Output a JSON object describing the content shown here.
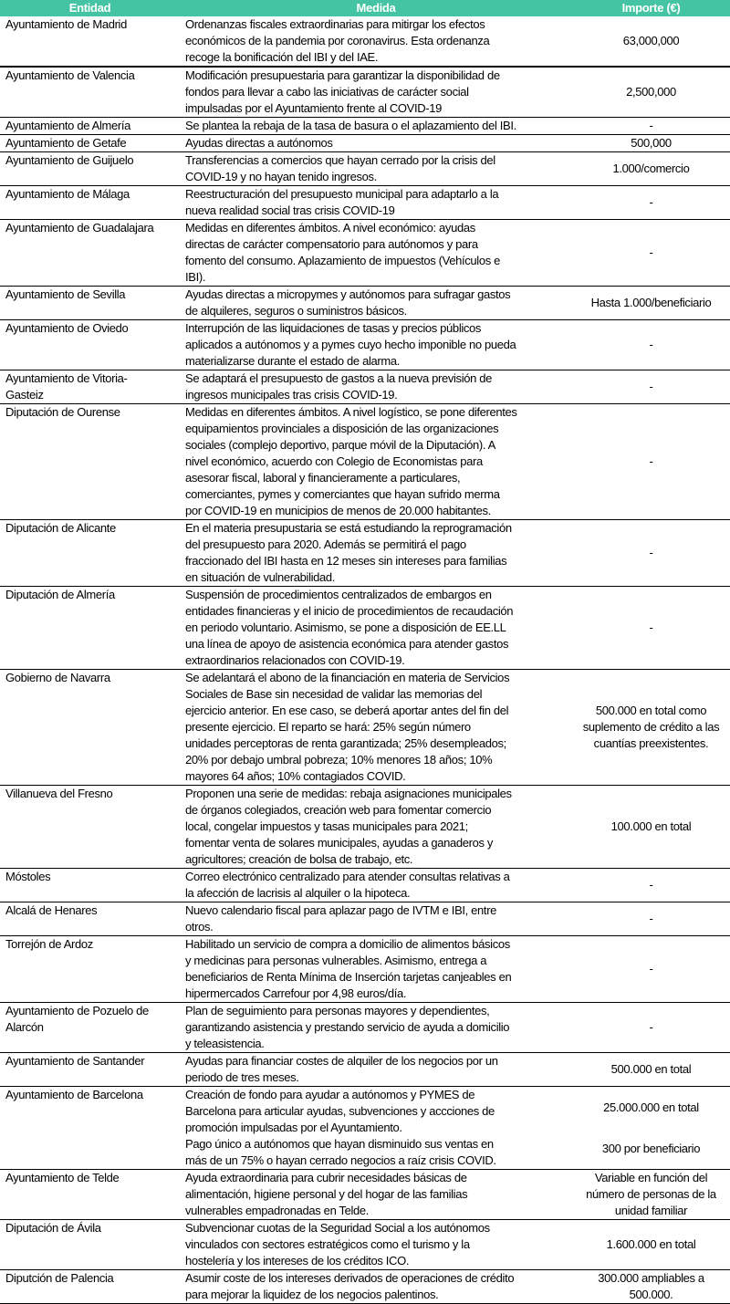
{
  "headers": {
    "entidad": "Entidad",
    "medida": "Medida",
    "importe": "Importe (€)"
  },
  "header_color": "#45C4A4",
  "rows": [
    {
      "entidad": "Ayuntamiento de Madrid",
      "medida": "Ordenanzas fiscales extraordinarias para mitirgar los efectos\neconómicos de la pandemia por coronavirus. Esta ordenanza\nrecoge la bonificación del IBI y del IAE.",
      "importe": [
        "63,000,000"
      ]
    },
    {
      "entidad": "Ayuntamiento de Valencia",
      "medida": "Modificación presupuestaria para garantizar la disponibilidad de\nfondos para llevar a cabo las iniciativas de carácter social\nimpulsadas por el Ayuntamiento frente al COVID-19",
      "importe": [
        "2,500,000"
      ]
    },
    {
      "entidad": "Ayuntamiento de Almería",
      "medida": "Se plantea la rebaja de la tasa de basura o el aplazamiento del IBI.",
      "importe": [
        "-"
      ]
    },
    {
      "entidad": "Ayuntamiento de Getafe",
      "medida": "Ayudas directas a autónomos",
      "importe": [
        "500,000"
      ]
    },
    {
      "entidad": "Ayuntamiento de Guijuelo",
      "medida": "Transferencias a comercios que hayan cerrado por la crisis del\nCOVID-19 y no hayan tenido ingresos.",
      "importe": [
        "1.000/comercio"
      ]
    },
    {
      "entidad": "Ayuntamiento de Málaga",
      "medida": "Reestructuración del presupuesto municipal para adaptarlo a la\nnueva realidad social tras crisis COVID-19",
      "importe": [
        "-"
      ]
    },
    {
      "entidad": "Ayuntamiento de Guadalajara",
      "medida": "Medidas en diferentes ámbitos. A nivel económico: ayudas\ndirectas de carácter compensatorio para autónomos y para\nfomento del consumo. Aplazamiento de impuestos (Vehículos e\nIBI).",
      "importe": [
        "-"
      ]
    },
    {
      "entidad": "Ayuntamiento de Sevilla",
      "medida": "Ayudas directas a micropymes y autónomos para sufragar gastos\nde alquileres, seguros o suministros básicos.",
      "importe": [
        "Hasta 1.000/beneficiario"
      ]
    },
    {
      "entidad": "Ayuntamiento de Oviedo",
      "medida": "Interrupción de las liquidaciones de tasas y precios públicos\naplicados a autónomos y a pymes cuyo hecho imponible no pueda\nmaterializarse durante el estado de alarma.",
      "importe": [
        "-"
      ]
    },
    {
      "entidad": "Ayuntamiento de Vitoria-\nGasteiz",
      "medida": "Se adaptará el presupuesto de gastos a la nueva previsión de\ningresos municipales tras crisis COVID-19.",
      "importe": [
        "-"
      ]
    },
    {
      "entidad": "Diputación de Ourense",
      "medida": "Medidas en diferentes ámbitos. A nivel logístico, se pone diferentes\nequipamientos provinciales a disposición de las organizaciones\nsociales (complejo deportivo, parque móvil de la Diputación). A\nnivel económico, acuerdo con Colegio de Economistas para\nasesorar fiscal, laboral y financieramente a particulares,\ncomerciantes, pymes y comerciantes que hayan sufrido merma\npor COVID-19 en municipios de menos de 20.000 habitantes.",
      "importe": [
        "-"
      ]
    },
    {
      "entidad": "Diputación de Alicante",
      "medida": "En el materia presupustaria se está estudiando la reprogramación\ndel presupuesto para 2020. Además se permitirá el pago\nfraccionado del IBI hasta en 12 meses sin intereses para familias\nen situación de vulnerabilidad.",
      "importe": [
        "-"
      ]
    },
    {
      "entidad": "Diputación de Almería",
      "medida": "Suspensión de procedimientos centralizados de embargos en\nentidades financieras y el inicio de procedimientos de recaudación\nen periodo voluntario. Asimismo, se pone a disposición de EE.LL\nuna línea de apoyo de asistencia económica para atender gastos\nextraordinarios relacionados con COVID-19.",
      "importe": [
        "-"
      ]
    },
    {
      "entidad": "Gobierno de Navarra",
      "medida": "Se adelantará el abono de la financiación en materia de Servicios\nSociales de Base sin necesidad de validar las memorias del\nejercicio anterior. En ese caso, se deberá aportar antes del fin del\npresente ejercicio. El reparto  se hará: 25% según número\nunidades perceptoras de renta garantizada; 25% desempleados;\n20% por debajo umbral pobreza; 10% menores 18 años; 10%\nmayores 64 años; 10% contagiados COVID.",
      "importe": [
        "500.000 en total como\nsuplemento de crédito a las\ncuantías preexistentes."
      ]
    },
    {
      "entidad": "Villanueva del Fresno",
      "medida": "Proponen una serie de medidas: rebaja asignaciones municipales\nde órganos colegiados, creación web para fomentar comercio\nlocal, congelar impuestos y tasas municipales para 2021;\nfomentar venta de solares municipales, ayudas a ganaderos y\nagricultores; creación de bolsa de trabajo, etc.",
      "importe": [
        "100.000 en total"
      ]
    },
    {
      "entidad": "Móstoles",
      "medida": "Correo electrónico centralizado para atender consultas relativas a\nla afección de lacrisis al alquiler o la hipoteca.",
      "importe": [
        "-"
      ]
    },
    {
      "entidad": "Alcalá de Henares",
      "medida": "Nuevo calendario fiscal para aplazar pago de IVTM e IBI, entre\notros.",
      "importe": [
        "-"
      ]
    },
    {
      "entidad": "Torrejón de Ardoz",
      "medida": "Habilitado un servicio de compra a domicilio de alimentos básicos\ny medicinas para personas vulnerables. Asimismo, entrega a\nbeneficiarios de Renta Mínima de Inserción tarjetas canjeables en\nhipermercados Carrefour por 4,98 euros/día.",
      "importe": [
        "-"
      ]
    },
    {
      "entidad": "Ayuntamiento de Pozuelo de\nAlarcón",
      "medida": "Plan de seguimiento para personas mayores y dependientes,\ngarantizando asistencia y prestando servicio de ayuda a domicilio\ny teleasistencia.",
      "importe": [
        "-"
      ]
    },
    {
      "entidad": "Ayuntamiento de Santander",
      "medida": "Ayudas para financiar costes de alquiler de los negocios por un\nperiodo de tres meses.",
      "importe": [
        "500.000 en total"
      ]
    },
    {
      "entidad": "Ayuntamiento de Barcelona",
      "medida": "Creación de fondo para ayudar a autónomos y PYMES de\nBarcelona para articular ayudas, subvenciones y accciones de\npromoción impulsadas por el Ayuntamiento.\nPago único a autónomos que hayan disminuido sus ventas en\nmás de un 75% o hayan cerrado negocios a raíz crisis COVID.",
      "importe": [
        "25.000.000 en total",
        "300 por beneficiario"
      ]
    },
    {
      "entidad": "Ayuntamiento de Telde",
      "medida": "Ayuda extraordinaria para cubrir necesidades básicas de\nalimentación, higiene personal y del hogar de las familias\nvulnerables empadronadas en Telde.",
      "importe": [
        "Variable en función del\nnúmero de personas de la\nunidad familiar"
      ]
    },
    {
      "entidad": "Diputación de Ávila",
      "medida": "Subvencionar cuotas de la Seguridad Social a los autónomos\nvinculados con sectores estratégicos como el turismo y la\nhostelería y los intereses de los créditos ICO.",
      "importe": [
        "1.600.000 en total"
      ]
    },
    {
      "entidad": "Diputción de Palencia",
      "medida": "Asumir coste de los intereses derivados de operaciones de crédito\npara mejorar la liquidez de los negocios palentinos.",
      "importe": [
        "300.000 ampliables a\n500.000."
      ]
    }
  ]
}
